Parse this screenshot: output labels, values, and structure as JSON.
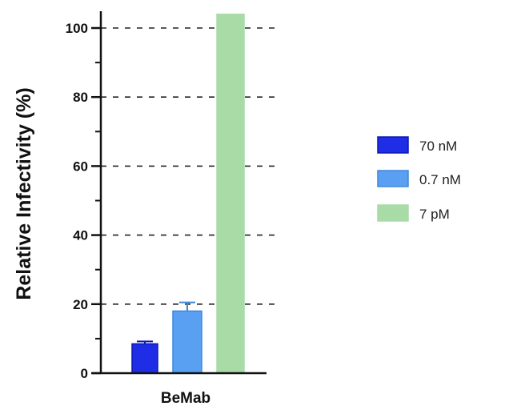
{
  "chart_data": {
    "type": "bar",
    "title": "",
    "xlabel": "",
    "ylabel": "Relative Infectivity (%)",
    "categories": [
      "BeMab"
    ],
    "ylim": [
      0,
      105
    ],
    "yticks": [
      0,
      20,
      40,
      60,
      80,
      100
    ],
    "grid": "dashed horizontal at major ticks",
    "legend_position": "right",
    "series": [
      {
        "name": "70 nM",
        "values": [
          8.5
        ],
        "error": [
          0.7
        ],
        "color": "#1f2de6",
        "edge": "#0c18b0"
      },
      {
        "name": "0.7 nM",
        "values": [
          18
        ],
        "error": [
          2.5
        ],
        "color": "#5aa0f2",
        "edge": "#3f86dc"
      },
      {
        "name": "7 pM",
        "values": [
          104
        ],
        "error": [
          0
        ],
        "color": "#a9dba7",
        "edge": "#a9dba7"
      }
    ]
  }
}
